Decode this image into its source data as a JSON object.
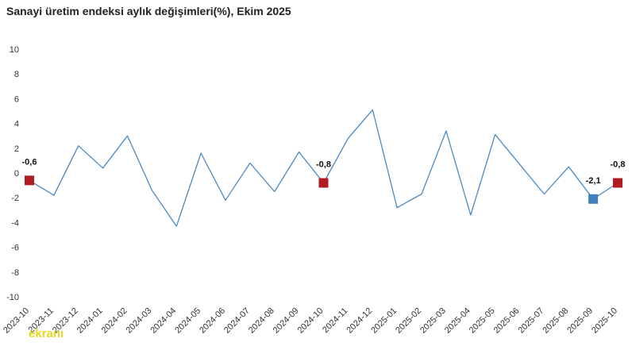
{
  "chart_data": {
    "type": "line",
    "title": "Sanayi üretim endeksi aylık değişimleri(%), Ekim 2025",
    "xlabel": "",
    "ylabel": "",
    "ylim": [
      -10,
      10
    ],
    "yticks": [
      10,
      8,
      6,
      4,
      2,
      0,
      -2,
      -4,
      -6,
      -8,
      -10
    ],
    "grid": false,
    "legend": "none",
    "line_color": "#4a8ac4",
    "marker_color_red": "#b01c22",
    "marker_color_blue": "#3d80bd",
    "categories": [
      "2023-10",
      "2023-11",
      "2023-12",
      "2024-01",
      "2024-02",
      "2024-03",
      "2024-04",
      "2024-05",
      "2024-06",
      "2024-07",
      "2024-08",
      "2024-09",
      "2024-10",
      "2024-11",
      "2024-12",
      "2025-01",
      "2025-02",
      "2025-03",
      "2025-04",
      "2025-05",
      "2025-06",
      "2025-07",
      "2025-08",
      "2025-09",
      "2025-10"
    ],
    "values": [
      -0.6,
      -1.8,
      2.2,
      0.4,
      3.0,
      -1.4,
      -4.3,
      1.6,
      -2.2,
      0.8,
      -1.5,
      1.7,
      -0.8,
      2.8,
      5.1,
      -2.8,
      -1.7,
      3.4,
      -3.4,
      3.1,
      0.7,
      -1.7,
      0.5,
      -2.1,
      -0.8
    ],
    "highlights": [
      {
        "category": "2023-10",
        "label": "-0,6",
        "marker": "red"
      },
      {
        "category": "2024-10",
        "label": "-0,8",
        "marker": "red"
      },
      {
        "category": "2025-09",
        "label": "-2,1",
        "marker": "blue"
      },
      {
        "category": "2025-10",
        "label": "-0,8",
        "marker": "red"
      }
    ]
  },
  "watermark": "ekranı"
}
